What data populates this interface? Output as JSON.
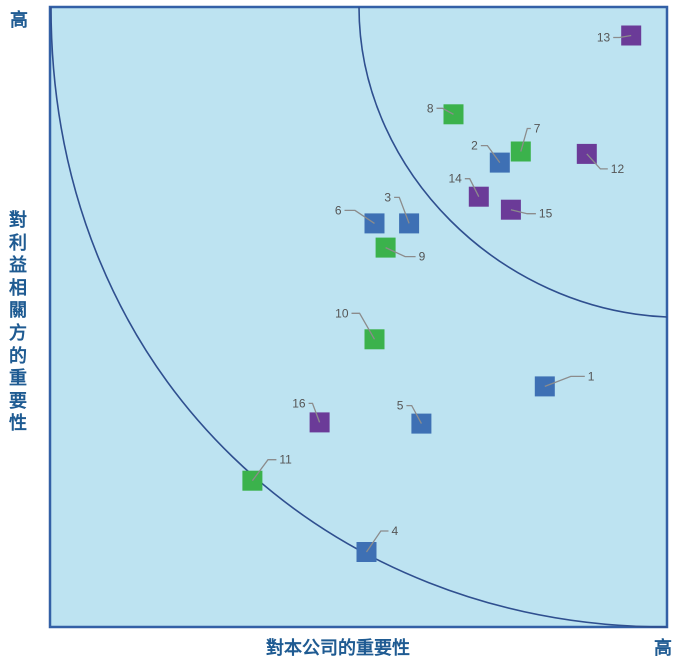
{
  "chart_data": {
    "type": "scatter",
    "title": "",
    "xlabel": "對本公司的重要性",
    "ylabel": "對利益相關方的重要性",
    "x_high_label": "高",
    "y_high_label": "高",
    "xlim": [
      0,
      100
    ],
    "ylim": [
      0,
      100
    ],
    "grid": false,
    "legend": "none",
    "background_color": "#bde3f1",
    "frame_color": "#3360a6",
    "arc_color": "#2f4f8f",
    "leader_color": "#8c8c8c",
    "label_color": "#555555",
    "axis_label_color": "#1f5b92",
    "colors": {
      "blue": "#3e70b4",
      "green": "#3bb24c",
      "purple": "#6b3b98"
    },
    "points": [
      {
        "label": "1",
        "x": 80.2,
        "y": 38.8,
        "color": "blue"
      },
      {
        "label": "2",
        "x": 72.9,
        "y": 74.9,
        "color": "blue"
      },
      {
        "label": "3",
        "x": 58.2,
        "y": 65.1,
        "color": "blue"
      },
      {
        "label": "4",
        "x": 51.3,
        "y": 12.1,
        "color": "blue"
      },
      {
        "label": "5",
        "x": 60.2,
        "y": 32.8,
        "color": "blue"
      },
      {
        "label": "6",
        "x": 52.6,
        "y": 65.1,
        "color": "blue"
      },
      {
        "label": "7",
        "x": 76.3,
        "y": 76.7,
        "color": "green"
      },
      {
        "label": "8",
        "x": 65.4,
        "y": 82.7,
        "color": "green"
      },
      {
        "label": "9",
        "x": 54.4,
        "y": 61.2,
        "color": "green"
      },
      {
        "label": "10",
        "x": 52.6,
        "y": 46.4,
        "color": "green"
      },
      {
        "label": "11",
        "x": 32.8,
        "y": 23.6,
        "color": "green"
      },
      {
        "label": "12",
        "x": 87.0,
        "y": 76.3,
        "color": "purple"
      },
      {
        "label": "13",
        "x": 94.2,
        "y": 95.4,
        "color": "purple"
      },
      {
        "label": "14",
        "x": 69.5,
        "y": 69.4,
        "color": "purple"
      },
      {
        "label": "15",
        "x": 74.7,
        "y": 67.3,
        "color": "purple"
      },
      {
        "label": "16",
        "x": 43.7,
        "y": 33.0,
        "color": "purple"
      }
    ]
  }
}
